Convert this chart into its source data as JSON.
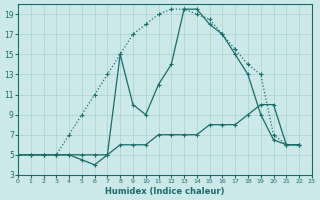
{
  "xlabel": "Humidex (Indice chaleur)",
  "bg_color": "#cce8e8",
  "grid_color": "#aad0d0",
  "line_color": "#1a6b6b",
  "xlim": [
    0,
    23
  ],
  "ylim": [
    3,
    20
  ],
  "xticks": [
    0,
    1,
    2,
    3,
    4,
    5,
    6,
    7,
    8,
    9,
    10,
    11,
    12,
    13,
    14,
    15,
    16,
    17,
    18,
    19,
    20,
    21,
    22,
    23
  ],
  "yticks": [
    3,
    5,
    7,
    9,
    11,
    13,
    15,
    17,
    19
  ],
  "curve_dotted_x": [
    0,
    1,
    2,
    3,
    4,
    5,
    6,
    7,
    8,
    9,
    10,
    11,
    12,
    13,
    14,
    15,
    16,
    17,
    18,
    19,
    20,
    21,
    22
  ],
  "curve_dotted_y": [
    5,
    5,
    5,
    5,
    7,
    9,
    11,
    13,
    15,
    17,
    18,
    19,
    19.5,
    19.5,
    19,
    18.5,
    17,
    15.5,
    14,
    13,
    7,
    6,
    6
  ],
  "curve_solid_peaked_x": [
    0,
    1,
    2,
    3,
    4,
    5,
    6,
    7,
    8,
    9,
    10,
    11,
    12,
    13,
    14,
    15,
    16,
    17,
    18,
    19,
    20,
    21,
    22
  ],
  "curve_solid_peaked_y": [
    5,
    5,
    5,
    5,
    5,
    4.5,
    4,
    5,
    15,
    10,
    9,
    12,
    14,
    19.5,
    19.5,
    18,
    17,
    15,
    13,
    9,
    6.5,
    6,
    6
  ],
  "curve_flat_x": [
    0,
    1,
    2,
    3,
    4,
    5,
    6,
    7,
    8,
    9,
    10,
    11,
    12,
    13,
    14,
    15,
    16,
    17,
    18,
    19,
    20,
    21,
    22
  ],
  "curve_flat_y": [
    5,
    5,
    5,
    5,
    5,
    5,
    5,
    5,
    6,
    6,
    6,
    7,
    7,
    7,
    7,
    8,
    8,
    8,
    9,
    10,
    10,
    6,
    6
  ]
}
